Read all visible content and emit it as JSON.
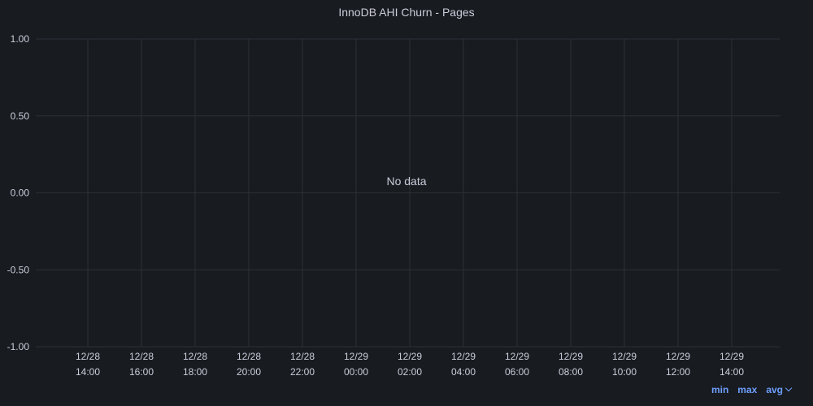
{
  "chart_data": {
    "type": "line",
    "title": "InnoDB AHI Churn - Pages",
    "xlabel": "",
    "ylabel": "",
    "ylim": [
      -1.0,
      1.0
    ],
    "y_ticks": [
      "1.00",
      "0.50",
      "0.00",
      "-0.50",
      "-1.00"
    ],
    "y_tick_values": [
      1.0,
      0.5,
      0.0,
      -0.5,
      -1.0
    ],
    "x_ticks": [
      {
        "date": "12/28",
        "time": "14:00"
      },
      {
        "date": "12/28",
        "time": "16:00"
      },
      {
        "date": "12/28",
        "time": "18:00"
      },
      {
        "date": "12/28",
        "time": "20:00"
      },
      {
        "date": "12/28",
        "time": "22:00"
      },
      {
        "date": "12/29",
        "time": "00:00"
      },
      {
        "date": "12/29",
        "time": "02:00"
      },
      {
        "date": "12/29",
        "time": "04:00"
      },
      {
        "date": "12/29",
        "time": "06:00"
      },
      {
        "date": "12/29",
        "time": "08:00"
      },
      {
        "date": "12/29",
        "time": "10:00"
      },
      {
        "date": "12/29",
        "time": "12:00"
      },
      {
        "date": "12/29",
        "time": "14:00"
      }
    ],
    "series": [],
    "grid": true,
    "empty_message": "No data"
  },
  "legend": {
    "min_label": "min",
    "max_label": "max",
    "avg_label": "avg",
    "chevron_icon": "chevron-down-icon"
  },
  "colors": {
    "background": "#181b1f",
    "grid": "#2c3038",
    "text": "#ccccdc",
    "link": "#6e9fff"
  }
}
